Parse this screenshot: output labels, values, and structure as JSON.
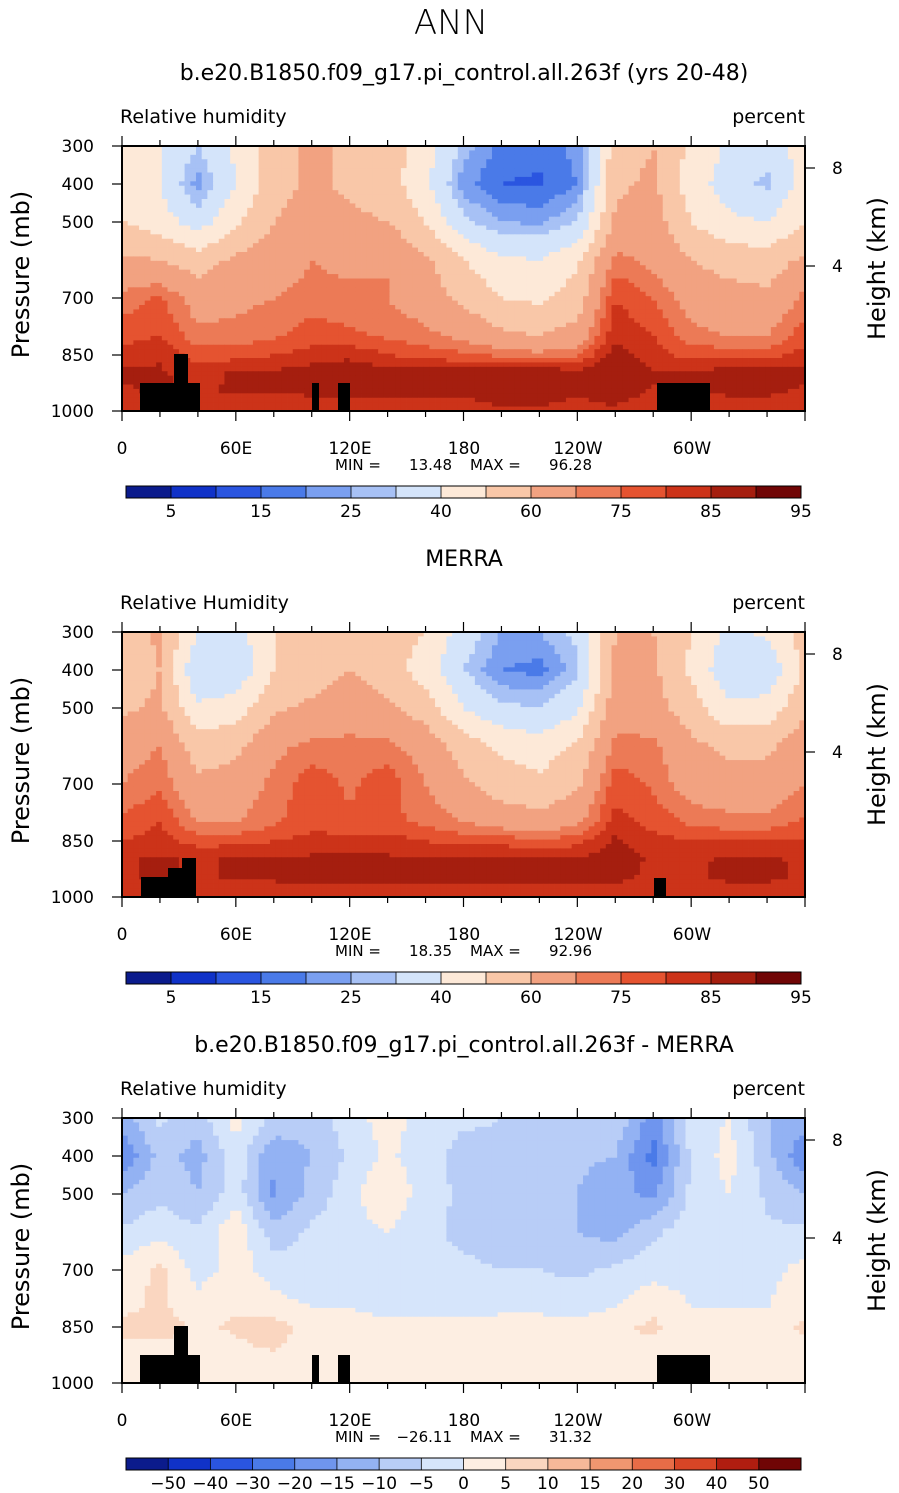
{
  "page_title": "ANN",
  "colors": {
    "seq_palette": [
      "#0b1b8c",
      "#1032c8",
      "#2a55e0",
      "#4a7ae8",
      "#7a9ff0",
      "#a7c1f5",
      "#d4e4fa",
      "#fde9d8",
      "#f9c7a8",
      "#f2a281",
      "#ec7a56",
      "#e55330",
      "#cc3319",
      "#a51e0f",
      "#700505"
    ],
    "diff_palette": [
      "#0b1b8c",
      "#1032c8",
      "#2a55e0",
      "#4a7ae8",
      "#6f95ee",
      "#93b2f3",
      "#b8cdf7",
      "#d6e5fb",
      "#fdeee2",
      "#fad6c0",
      "#f6b899",
      "#f09670",
      "#e86c47",
      "#d84526",
      "#b01d10",
      "#700505"
    ],
    "topo": "#000000"
  },
  "charts": [
    {
      "title": "b.e20.B1850.f09_g17.pi_control.all.263f (yrs 20-48)",
      "left_label": "Relative humidity",
      "right_label": "percent",
      "ylabel": "Pressure (mb)",
      "ylabel_right": "Height (km)",
      "x_ticks": [
        "0",
        "60E",
        "120E",
        "180",
        "120W",
        "60W"
      ],
      "y_ticks": [
        "300",
        "400",
        "500",
        "700",
        "850",
        "1000"
      ],
      "height_ticks": [
        "8",
        "4"
      ],
      "stats": {
        "min_label": "MIN =",
        "min": "13.48",
        "max_label": "MAX =",
        "max": "96.28"
      },
      "colorbar_labels": [
        "5",
        "15",
        "25",
        "40",
        "60",
        "75",
        "85",
        "95"
      ]
    },
    {
      "title": "MERRA",
      "left_label": "Relative Humidity",
      "right_label": "percent",
      "ylabel": "Pressure (mb)",
      "ylabel_right": "Height (km)",
      "x_ticks": [
        "0",
        "60E",
        "120E",
        "180",
        "120W",
        "60W"
      ],
      "y_ticks": [
        "300",
        "400",
        "500",
        "700",
        "850",
        "1000"
      ],
      "height_ticks": [
        "8",
        "4"
      ],
      "stats": {
        "min_label": "MIN =",
        "min": "18.35",
        "max_label": "MAX =",
        "max": "92.96"
      },
      "colorbar_labels": [
        "5",
        "15",
        "25",
        "40",
        "60",
        "75",
        "85",
        "95"
      ]
    },
    {
      "title": "b.e20.B1850.f09_g17.pi_control.all.263f - MERRA",
      "left_label": "Relative humidity",
      "right_label": "percent",
      "ylabel": "Pressure (mb)",
      "ylabel_right": "Height (km)",
      "x_ticks": [
        "0",
        "60E",
        "120E",
        "180",
        "120W",
        "60W"
      ],
      "y_ticks": [
        "300",
        "400",
        "500",
        "700",
        "850",
        "1000"
      ],
      "height_ticks": [
        "8",
        "4"
      ],
      "stats": {
        "min_label": "MIN =",
        "min": "−26.11",
        "max_label": "MAX =",
        "max": "31.32"
      },
      "colorbar_labels": [
        "−50",
        "−40",
        "−30",
        "−20",
        "−15",
        "−10",
        "−5",
        "0",
        "5",
        "10",
        "15",
        "20",
        "30",
        "40",
        "50"
      ]
    }
  ],
  "chart_data": [
    {
      "type": "heatmap",
      "title": "b.e20.B1850.f09_g17.pi_control.all.263f (yrs 20-48)",
      "variable": "Relative humidity",
      "units": "percent",
      "xlabel": "",
      "ylabel": "Pressure (mb)",
      "xlim": [
        0,
        360
      ],
      "ylim": [
        1000,
        300
      ],
      "x": [
        0,
        20,
        40,
        60,
        80,
        100,
        120,
        140,
        160,
        180,
        200,
        220,
        240,
        260,
        280,
        300,
        320,
        340,
        360
      ],
      "y": [
        300,
        400,
        500,
        600,
        700,
        800,
        850,
        900,
        950,
        1000
      ],
      "z": [
        [
          45,
          40,
          30,
          42,
          55,
          62,
          58,
          55,
          45,
          28,
          18,
          17,
          22,
          55,
          60,
          48,
          38,
          34,
          45
        ],
        [
          45,
          40,
          22,
          40,
          55,
          62,
          58,
          55,
          42,
          22,
          15,
          14,
          20,
          58,
          62,
          45,
          35,
          28,
          45
        ],
        [
          50,
          45,
          35,
          48,
          60,
          66,
          62,
          60,
          50,
          32,
          25,
          24,
          30,
          62,
          65,
          50,
          42,
          40,
          50
        ],
        [
          62,
          60,
          55,
          62,
          66,
          70,
          68,
          70,
          62,
          50,
          42,
          40,
          48,
          72,
          68,
          60,
          56,
          55,
          62
        ],
        [
          72,
          76,
          66,
          68,
          70,
          72,
          72,
          70,
          65,
          58,
          50,
          48,
          55,
          80,
          75,
          66,
          64,
          62,
          72
        ],
        [
          78,
          80,
          72,
          72,
          74,
          78,
          76,
          74,
          72,
          68,
          62,
          60,
          64,
          84,
          80,
          72,
          70,
          70,
          78
        ],
        [
          82,
          84,
          78,
          78,
          80,
          82,
          84,
          80,
          78,
          76,
          74,
          72,
          74,
          88,
          82,
          78,
          78,
          78,
          82
        ],
        [
          86,
          86,
          82,
          86,
          86,
          88,
          88,
          88,
          88,
          88,
          90,
          90,
          88,
          90,
          86,
          86,
          88,
          88,
          86
        ],
        [
          84,
          86,
          84,
          86,
          85,
          86,
          86,
          86,
          86,
          86,
          88,
          88,
          86,
          88,
          84,
          84,
          86,
          86,
          84
        ],
        [
          80,
          82,
          80,
          80,
          80,
          82,
          82,
          82,
          82,
          82,
          84,
          84,
          82,
          84,
          80,
          80,
          82,
          82,
          80
        ]
      ],
      "levels": [
        5,
        10,
        15,
        20,
        25,
        30,
        40,
        50,
        60,
        70,
        75,
        80,
        85,
        90,
        95
      ],
      "stats": {
        "min": 13.48,
        "max": 96.28
      }
    },
    {
      "type": "heatmap",
      "title": "MERRA",
      "variable": "Relative Humidity",
      "units": "percent",
      "xlabel": "",
      "ylabel": "Pressure (mb)",
      "xlim": [
        0,
        360
      ],
      "ylim": [
        1000,
        300
      ],
      "x": [
        0,
        20,
        40,
        60,
        80,
        100,
        120,
        140,
        160,
        180,
        200,
        220,
        240,
        260,
        280,
        300,
        320,
        340,
        360
      ],
      "y": [
        300,
        400,
        500,
        600,
        700,
        800,
        850,
        900,
        950,
        1000
      ],
      "z": [
        [
          55,
          62,
          40,
          35,
          50,
          55,
          60,
          55,
          50,
          35,
          25,
          25,
          32,
          60,
          60,
          50,
          38,
          42,
          55
        ],
        [
          52,
          60,
          30,
          32,
          50,
          55,
          60,
          55,
          45,
          30,
          20,
          18,
          28,
          62,
          62,
          48,
          32,
          32,
          52
        ],
        [
          58,
          62,
          42,
          45,
          58,
          62,
          65,
          62,
          55,
          40,
          32,
          30,
          38,
          66,
          64,
          55,
          42,
          44,
          58
        ],
        [
          66,
          70,
          55,
          58,
          68,
          72,
          72,
          72,
          66,
          55,
          48,
          45,
          52,
          72,
          72,
          62,
          58,
          58,
          66
        ],
        [
          70,
          74,
          62,
          64,
          72,
          78,
          74,
          78,
          70,
          62,
          55,
          52,
          58,
          78,
          74,
          66,
          64,
          64,
          70
        ],
        [
          76,
          80,
          70,
          70,
          74,
          78,
          76,
          76,
          74,
          70,
          66,
          64,
          68,
          82,
          78,
          74,
          72,
          72,
          76
        ],
        [
          80,
          82,
          78,
          78,
          80,
          82,
          82,
          82,
          80,
          78,
          78,
          76,
          78,
          86,
          82,
          80,
          80,
          80,
          80
        ],
        [
          84,
          86,
          84,
          86,
          86,
          86,
          86,
          86,
          86,
          86,
          86,
          86,
          86,
          88,
          84,
          84,
          86,
          86,
          84
        ],
        [
          84,
          86,
          84,
          86,
          86,
          86,
          86,
          86,
          86,
          86,
          86,
          86,
          86,
          86,
          84,
          84,
          86,
          86,
          84
        ],
        [
          80,
          82,
          80,
          80,
          80,
          82,
          82,
          82,
          82,
          82,
          82,
          82,
          82,
          82,
          80,
          80,
          82,
          82,
          80
        ]
      ],
      "levels": [
        5,
        10,
        15,
        20,
        25,
        30,
        40,
        50,
        60,
        70,
        75,
        80,
        85,
        90,
        95
      ],
      "stats": {
        "min": 18.35,
        "max": 92.96
      }
    },
    {
      "type": "heatmap",
      "title": "b.e20.B1850.f09_g17.pi_control.all.263f - MERRA",
      "variable": "Relative humidity",
      "units": "percent",
      "xlabel": "",
      "ylabel": "Pressure (mb)",
      "xlim": [
        0,
        360
      ],
      "ylim": [
        1000,
        300
      ],
      "x": [
        0,
        20,
        40,
        60,
        80,
        100,
        120,
        140,
        160,
        180,
        200,
        220,
        240,
        260,
        280,
        300,
        320,
        340,
        360
      ],
      "y": [
        300,
        400,
        500,
        600,
        700,
        800,
        850,
        900,
        950,
        1000
      ],
      "z": [
        [
          -12,
          -4,
          -8,
          2,
          -6,
          -8,
          -2,
          2,
          -2,
          -4,
          -5,
          -6,
          -8,
          -6,
          -18,
          -2,
          0,
          -10,
          -12
        ],
        [
          -20,
          -8,
          -12,
          -2,
          -14,
          -10,
          -4,
          1,
          -3,
          -7,
          -6,
          -7,
          -9,
          -10,
          -22,
          -4,
          2,
          -8,
          -20
        ],
        [
          -10,
          -6,
          -10,
          -2,
          -16,
          -8,
          -2,
          5,
          -3,
          -6,
          -8,
          -8,
          -10,
          -14,
          -16,
          -4,
          0,
          -6,
          -10
        ],
        [
          -4,
          -2,
          -4,
          4,
          -8,
          -4,
          -2,
          0,
          -4,
          -6,
          -8,
          -8,
          -10,
          -12,
          -6,
          -2,
          0,
          -4,
          -4
        ],
        [
          2,
          6,
          -2,
          2,
          -2,
          -4,
          -2,
          -4,
          -4,
          -4,
          -5,
          -5,
          -6,
          -4,
          -2,
          -2,
          0,
          -2,
          2
        ],
        [
          4,
          6,
          2,
          4,
          2,
          0,
          0,
          -2,
          -2,
          -2,
          -2,
          -2,
          -2,
          0,
          4,
          0,
          0,
          0,
          4
        ],
        [
          6,
          8,
          4,
          6,
          8,
          2,
          2,
          2,
          2,
          2,
          4,
          4,
          2,
          4,
          6,
          2,
          2,
          2,
          6
        ],
        [
          4,
          4,
          2,
          4,
          6,
          2,
          2,
          2,
          2,
          2,
          4,
          4,
          2,
          4,
          4,
          2,
          2,
          2,
          4
        ],
        [
          2,
          2,
          2,
          2,
          2,
          2,
          2,
          2,
          2,
          2,
          2,
          2,
          2,
          2,
          2,
          2,
          2,
          2,
          2
        ],
        [
          0,
          0,
          0,
          0,
          0,
          0,
          0,
          0,
          0,
          0,
          0,
          0,
          0,
          0,
          0,
          0,
          0,
          0,
          0
        ]
      ],
      "levels": [
        -50,
        -40,
        -30,
        -20,
        -15,
        -10,
        -5,
        0,
        5,
        10,
        15,
        20,
        30,
        40,
        50
      ],
      "stats": {
        "min": -26.11,
        "max": 31.32
      }
    }
  ]
}
